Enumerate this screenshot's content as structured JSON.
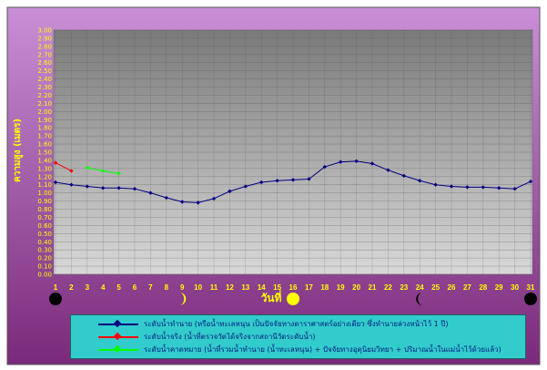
{
  "chart_data": {
    "type": "line",
    "title": "",
    "xlabel": "วันที่",
    "ylabel": "ความสูง (เมตร)",
    "ylim": [
      0.0,
      3.0
    ],
    "yticks": [
      "0.00",
      "0.10",
      "0.20",
      "0.30",
      "0.40",
      "0.50",
      "0.60",
      "0.70",
      "0.80",
      "0.90",
      "1.00",
      "1.10",
      "1.20",
      "1.30",
      "1.40",
      "1.50",
      "1.60",
      "1.70",
      "1.80",
      "1.90",
      "2.00",
      "2.10",
      "2.20",
      "2.30",
      "2.40",
      "2.50",
      "2.60",
      "2.70",
      "2.80",
      "2.90",
      "3.00"
    ],
    "xticks": [
      "1",
      "2",
      "3",
      "4",
      "5",
      "6",
      "7",
      "8",
      "9",
      "10",
      "11",
      "12",
      "13",
      "14",
      "15",
      "16",
      "17",
      "18",
      "19",
      "20",
      "21",
      "22",
      "23",
      "24",
      "25",
      "26",
      "27",
      "28",
      "29",
      "30",
      "31"
    ],
    "grid": true,
    "legend_position": "bottom",
    "series": [
      {
        "name": "ระดับน้ำทำนาย (หรือน้ำทะเลหนุน เป็นปัจจัยทางดาราศาสตร์อย่างเดียว ซึ่งทำนายล่วงหน้าไว้ 1 ปี)",
        "color": "#000080",
        "marker": "diamond",
        "x": [
          1,
          2,
          3,
          4,
          5,
          6,
          7,
          8,
          9,
          10,
          11,
          12,
          13,
          14,
          15,
          16,
          17,
          18,
          19,
          20,
          21,
          22,
          23,
          24,
          25,
          26,
          27,
          28,
          29,
          30,
          31
        ],
        "values": [
          1.13,
          1.1,
          1.08,
          1.06,
          1.06,
          1.05,
          1.0,
          0.94,
          0.89,
          0.88,
          0.93,
          1.02,
          1.08,
          1.13,
          1.15,
          1.16,
          1.17,
          1.32,
          1.38,
          1.39,
          1.36,
          1.28,
          1.21,
          1.15,
          1.1,
          1.08,
          1.07,
          1.07,
          1.06,
          1.05,
          1.14
        ]
      },
      {
        "name": "ระดับน้ำจริง (น้ำที่ตรวจวัดได้จริงจากสถานีวัดระดับน้ำ)",
        "color": "#ff0000",
        "marker": "diamond",
        "x": [
          1,
          2
        ],
        "values": [
          1.37,
          1.27
        ]
      },
      {
        "name": "ระดับน้ำคาดหมาย (น้ำที่รวมน้ำทำนาย (น้ำทะเลหนุน) + ปัจจัยทางอุตุนิยมวิทยา + ปริมาณน้ำในแม่น้ำไว้ด้วยแล้ว)",
        "color": "#00ff00",
        "marker": "diamond",
        "x": [
          3,
          4,
          5
        ],
        "values": [
          1.31,
          1.27,
          1.24
        ]
      }
    ],
    "moon_phases": [
      {
        "day": 1,
        "phase": "new-moon"
      },
      {
        "day": 9,
        "phase": "first-quarter"
      },
      {
        "day": 16,
        "phase": "full-moon"
      },
      {
        "day": 24,
        "phase": "last-quarter"
      },
      {
        "day": 31,
        "phase": "new-moon"
      }
    ],
    "colors": {
      "plot_bg_top": "#7a7a7a",
      "plot_bg_bottom": "#d8d8d8",
      "outer_bg_top": "#c98fd6",
      "outer_bg_bottom": "#7a2a7a",
      "tick_text": "#ffff00",
      "legend_bg": "#33cccc"
    }
  }
}
